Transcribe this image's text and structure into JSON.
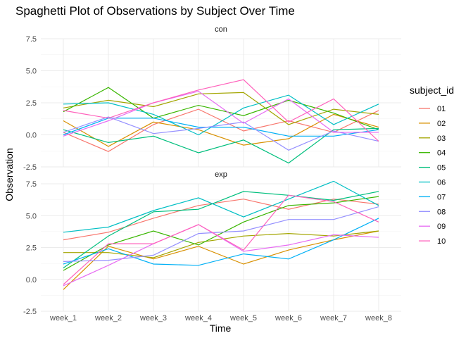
{
  "chart_data": {
    "type": "line",
    "title": "Spaghetti Plot of Observations by Subject Over Time",
    "xlabel": "Time",
    "ylabel": "Observation",
    "categories": [
      "week_1",
      "week_2",
      "week_3",
      "week_4",
      "week_5",
      "week_6",
      "week_7",
      "week_8"
    ],
    "ylim": [
      -2.5,
      7.5
    ],
    "yticks": [
      -2.5,
      0.0,
      2.5,
      5.0,
      7.5
    ],
    "ytick_labels": [
      "-2.5",
      "0.0",
      "2.5",
      "5.0",
      "7.5"
    ],
    "legend_title": "subject_id",
    "legend_position": "right",
    "grid": true,
    "subjects": [
      "01",
      "02",
      "03",
      "04",
      "05",
      "06",
      "07",
      "08",
      "09",
      "10"
    ],
    "colors": [
      "#F8766D",
      "#D89000",
      "#A3A500",
      "#39B600",
      "#00BF7D",
      "#00BFC4",
      "#00B0F6",
      "#9590FF",
      "#E76BF3",
      "#FF62BC"
    ],
    "panels": [
      {
        "label": "con",
        "series": [
          {
            "name": "01",
            "values": [
              0.2,
              -1.3,
              0.8,
              2.0,
              0.3,
              1.1,
              0.2,
              1.9
            ]
          },
          {
            "name": "02",
            "values": [
              1.1,
              -0.9,
              1.0,
              0.4,
              -0.8,
              -0.3,
              1.6,
              0.6
            ]
          },
          {
            "name": "03",
            "values": [
              2.1,
              2.7,
              2.2,
              3.2,
              3.3,
              0.8,
              2.0,
              1.6
            ]
          },
          {
            "name": "04",
            "values": [
              1.8,
              3.7,
              1.3,
              2.3,
              1.5,
              2.7,
              1.7,
              0.4
            ]
          },
          {
            "name": "05",
            "values": [
              0.4,
              -0.6,
              -0.1,
              -1.4,
              -0.4,
              -2.2,
              0.4,
              0.5
            ]
          },
          {
            "name": "06",
            "values": [
              2.4,
              2.5,
              1.6,
              0.0,
              2.1,
              3.1,
              0.8,
              2.4
            ]
          },
          {
            "name": "07",
            "values": [
              0.0,
              1.3,
              1.3,
              0.6,
              0.6,
              -0.1,
              -0.1,
              0.4
            ]
          },
          {
            "name": "08",
            "values": [
              0.2,
              1.4,
              0.1,
              0.5,
              1.0,
              -1.2,
              0.3,
              -0.5
            ]
          },
          {
            "name": "09",
            "values": [
              -0.1,
              1.1,
              2.5,
              3.4,
              0.9,
              2.8,
              0.2,
              0.2
            ]
          },
          {
            "name": "10",
            "values": [
              1.9,
              1.3,
              2.5,
              3.5,
              4.3,
              1.0,
              2.8,
              -0.5
            ]
          }
        ]
      },
      {
        "label": "exp",
        "series": [
          {
            "name": "01",
            "values": [
              3.1,
              3.7,
              4.8,
              5.8,
              6.3,
              5.5,
              6.3,
              5.9
            ]
          },
          {
            "name": "02",
            "values": [
              -0.8,
              2.6,
              1.6,
              2.6,
              1.2,
              2.3,
              3.1,
              3.8
            ]
          },
          {
            "name": "03",
            "values": [
              2.1,
              2.1,
              1.7,
              2.9,
              3.4,
              3.6,
              3.4,
              3.8
            ]
          },
          {
            "name": "04",
            "values": [
              0.7,
              2.7,
              3.8,
              2.7,
              4.5,
              5.8,
              6.0,
              6.5
            ]
          },
          {
            "name": "05",
            "values": [
              0.9,
              3.4,
              5.3,
              5.5,
              6.9,
              6.6,
              6.2,
              6.9
            ]
          },
          {
            "name": "06",
            "values": [
              3.7,
              4.1,
              5.4,
              6.4,
              4.9,
              6.3,
              7.7,
              5.8
            ]
          },
          {
            "name": "07",
            "values": [
              1.2,
              2.4,
              1.2,
              1.1,
              2.0,
              1.6,
              3.1,
              4.8
            ]
          },
          {
            "name": "08",
            "values": [
              1.4,
              1.5,
              1.9,
              3.6,
              3.8,
              4.7,
              4.7,
              5.7
            ]
          },
          {
            "name": "09",
            "values": [
              -0.5,
              1.1,
              2.8,
              4.3,
              2.2,
              2.7,
              3.5,
              3.3
            ]
          },
          {
            "name": "10",
            "values": [
              -0.4,
              2.8,
              2.8,
              4.3,
              2.3,
              6.6,
              6.1,
              4.5
            ]
          }
        ]
      }
    ]
  }
}
